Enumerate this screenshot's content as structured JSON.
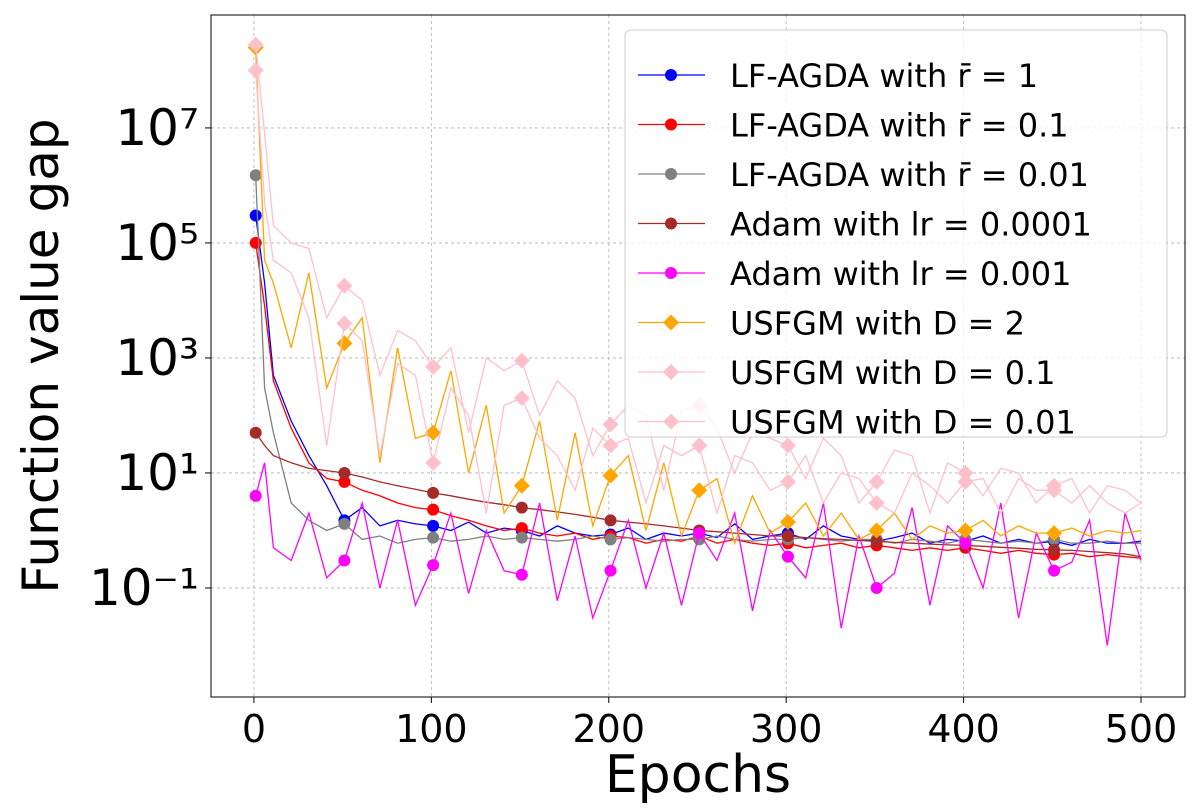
{
  "chart_data": {
    "type": "line",
    "xlabel": "Epochs",
    "ylabel": "Function value gap",
    "x": [
      1,
      6,
      11,
      21,
      31,
      41,
      51,
      61,
      71,
      81,
      91,
      101,
      111,
      121,
      131,
      141,
      151,
      161,
      171,
      181,
      191,
      201,
      211,
      221,
      231,
      241,
      251,
      261,
      271,
      281,
      291,
      301,
      311,
      321,
      331,
      341,
      351,
      361,
      371,
      381,
      391,
      401,
      411,
      421,
      431,
      441,
      451,
      461,
      471,
      481,
      491,
      500
    ],
    "xlim": [
      -24.2,
      524.8
    ],
    "xticks": [
      0,
      100,
      200,
      300,
      400,
      500
    ],
    "ylim": [
      0.00127,
      920000000
    ],
    "log_y": true,
    "grid": true,
    "legend": "upper right",
    "yticks": [
      {
        "value": 0.1,
        "label": "10⁻¹"
      },
      {
        "value": 10,
        "label": "10¹"
      },
      {
        "value": 1000,
        "label": "10³"
      },
      {
        "value": 100000,
        "label": "10⁵"
      },
      {
        "value": 10000000,
        "label": "10⁷"
      }
    ],
    "series": [
      {
        "name": "LF-AGDA  with r̄ = 1",
        "color": "#0000ff",
        "marker": "o",
        "values": [
          300000,
          20000,
          500,
          80,
          20,
          6,
          1.5,
          2.5,
          1.2,
          1.5,
          1.3,
          1.2,
          1.0,
          1.4,
          0.9,
          1.1,
          1.0,
          0.8,
          1.2,
          0.9,
          0.8,
          0.85,
          1.1,
          0.7,
          0.9,
          0.8,
          0.9,
          0.75,
          1.3,
          0.7,
          0.8,
          0.9,
          0.7,
          1.2,
          0.8,
          0.7,
          0.65,
          0.75,
          0.9,
          0.6,
          0.7,
          0.65,
          0.8,
          0.6,
          0.7,
          0.6,
          0.65,
          0.55,
          0.7,
          0.6,
          0.6,
          0.65
        ]
      },
      {
        "name": "LF-AGDA  with r̄ = 0.1",
        "color": "#ff0000",
        "marker": "o",
        "values": [
          100000,
          8000,
          400,
          60,
          15,
          8,
          7,
          5,
          4,
          3,
          2.5,
          2.3,
          1.8,
          1.5,
          1.2,
          1.0,
          1.1,
          0.9,
          0.8,
          0.9,
          0.7,
          0.8,
          0.75,
          0.6,
          0.7,
          0.65,
          0.8,
          0.6,
          0.7,
          0.6,
          0.55,
          0.6,
          0.5,
          0.55,
          0.6,
          0.5,
          0.55,
          0.5,
          0.45,
          0.5,
          0.45,
          0.5,
          0.45,
          0.4,
          0.45,
          0.4,
          0.38,
          0.4,
          0.35,
          0.38,
          0.35,
          0.33
        ]
      },
      {
        "name": "LF-AGDA  with r̄ = 0.01",
        "color": "#808080",
        "marker": "o",
        "values": [
          1500000,
          300,
          50,
          3,
          1.5,
          1.0,
          1.3,
          0.7,
          0.8,
          0.6,
          0.7,
          0.75,
          0.65,
          0.7,
          0.8,
          0.7,
          0.75,
          0.7,
          0.65,
          0.7,
          0.8,
          0.7,
          0.75,
          0.7,
          0.65,
          0.7,
          0.7,
          0.8,
          0.7,
          0.65,
          0.7,
          0.7,
          0.75,
          0.7,
          0.65,
          0.7,
          0.7,
          0.6,
          0.7,
          0.65,
          0.6,
          0.7,
          0.65,
          0.6,
          0.65,
          0.6,
          0.7,
          0.6,
          0.6,
          0.65,
          0.6,
          0.6
        ]
      },
      {
        "name": "Adam with lr = 0.0001",
        "color": "#a52a2a",
        "marker": "o",
        "values": [
          50,
          30,
          20,
          15,
          12,
          11,
          10,
          8.5,
          7,
          6,
          5.2,
          4.5,
          4,
          3.5,
          3.1,
          2.8,
          2.5,
          2.3,
          2.1,
          1.9,
          1.7,
          1.5,
          1.4,
          1.3,
          1.2,
          1.1,
          1.0,
          0.95,
          0.9,
          0.85,
          0.8,
          0.8,
          0.75,
          0.72,
          0.7,
          0.67,
          0.65,
          0.62,
          0.6,
          0.58,
          0.56,
          0.55,
          0.53,
          0.51,
          0.49,
          0.47,
          0.46,
          0.45,
          0.43,
          0.41,
          0.39,
          0.35
        ]
      },
      {
        "name": "Adam with lr = 0.001",
        "color": "#ff00ff",
        "marker": "o",
        "values": [
          4,
          15,
          0.5,
          0.3,
          2,
          0.15,
          0.3,
          3,
          0.1,
          1.5,
          0.05,
          0.25,
          2,
          0.08,
          1,
          0.2,
          0.17,
          3,
          0.06,
          0.8,
          0.03,
          0.2,
          1.5,
          0.1,
          0.9,
          0.05,
          0.9,
          0.3,
          2,
          0.04,
          1,
          0.35,
          0.15,
          3,
          0.02,
          0.8,
          0.1,
          0.18,
          2.5,
          0.05,
          1.2,
          0.6,
          0.1,
          3,
          0.03,
          0.9,
          0.2,
          0.28,
          1.5,
          0.01,
          2,
          0.3
        ]
      },
      {
        "name": "USFGM with D = 2",
        "color": "#ffa500",
        "marker": "D",
        "values": [
          250000000,
          50000,
          20000,
          1500,
          30000,
          300,
          1800,
          5000,
          15,
          1500,
          40,
          50,
          600,
          10,
          150,
          2,
          6,
          80,
          1.5,
          50,
          1.2,
          9,
          20,
          1.0,
          15,
          0.8,
          5,
          8,
          0.6,
          4,
          0.9,
          1.4,
          3,
          0.8,
          2,
          0.7,
          1.0,
          2,
          0.7,
          1.2,
          0.9,
          1.0,
          1.5,
          0.8,
          1.2,
          0.9,
          0.9,
          1.1,
          0.8,
          1.0,
          0.9,
          1.0
        ]
      },
      {
        "name": "USFGM with D = 0.1",
        "color": "#ffc0cb",
        "marker": "D",
        "values": [
          100000000,
          500000,
          50000,
          30000,
          5000,
          30,
          4000,
          2000,
          20,
          800,
          500,
          15,
          300,
          100,
          2,
          150,
          200,
          40,
          20,
          5,
          60,
          30,
          40,
          3,
          30,
          20,
          30,
          2,
          20,
          15,
          5,
          7,
          20,
          3,
          10,
          8,
          3,
          2,
          10,
          6,
          3,
          7,
          8,
          2,
          8,
          5,
          5,
          3,
          6,
          3,
          2,
          3
        ]
      },
      {
        "name": "USFGM with D = 0.01",
        "color": "#ffc0cb",
        "marker": "D",
        "values": [
          280000000,
          8000000,
          200000,
          100000,
          80000,
          5000,
          18000,
          10000,
          500,
          3000,
          2000,
          700,
          1500,
          50,
          1000,
          600,
          900,
          100,
          400,
          200,
          20,
          70,
          150,
          100,
          5,
          120,
          150,
          60,
          10,
          50,
          40,
          30,
          8,
          40,
          20,
          3,
          7,
          25,
          20,
          2,
          15,
          10,
          4,
          12,
          10,
          3,
          6,
          8,
          2,
          6,
          5,
          3
        ]
      }
    ]
  }
}
